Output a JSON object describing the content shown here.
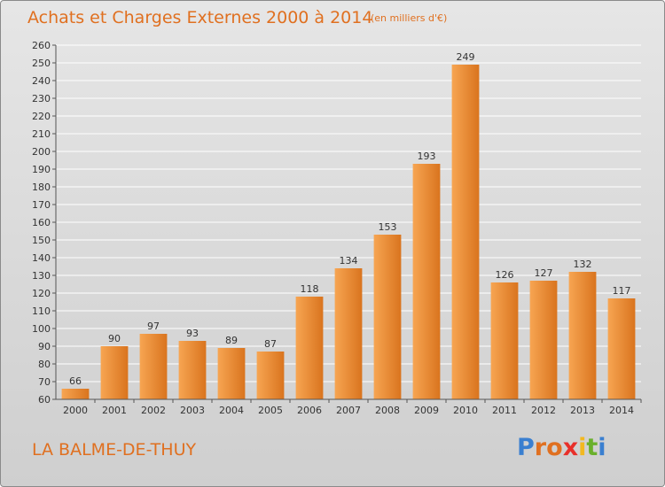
{
  "header": {
    "title": "Achats et Charges Externes 2000 à 2014",
    "subtitle": "(en milliers d'€)"
  },
  "footer": {
    "region": "LA BALME-DE-THUY",
    "logo_letters": [
      {
        "char": "P",
        "color": "#3a7fd0"
      },
      {
        "char": "r",
        "color": "#e07020"
      },
      {
        "char": "o",
        "color": "#e07020"
      },
      {
        "char": "x",
        "color": "#e8302a"
      },
      {
        "char": "i",
        "color": "#f2b820"
      },
      {
        "char": "t",
        "color": "#6ab02c"
      },
      {
        "char": "i",
        "color": "#3a7fd0"
      }
    ]
  },
  "colors": {
    "bar_light": "#f7a552",
    "bar_dark": "#d9741e",
    "grid": "#ffffff",
    "text": "#333333"
  },
  "chart_data": {
    "type": "bar",
    "categories": [
      "2000",
      "2001",
      "2002",
      "2003",
      "2004",
      "2005",
      "2006",
      "2007",
      "2008",
      "2009",
      "2010",
      "2011",
      "2012",
      "2013",
      "2014"
    ],
    "values": [
      66,
      90,
      97,
      93,
      89,
      87,
      118,
      134,
      153,
      193,
      249,
      126,
      127,
      132,
      117
    ],
    "data_labels": [
      "66",
      "90",
      "97",
      "93",
      "89",
      "87",
      "118",
      "134",
      "153",
      "193",
      "249",
      "126",
      "127",
      "132",
      "117"
    ],
    "ylim": [
      60,
      260
    ],
    "yticks": [
      "60",
      "70",
      "80",
      "90",
      "100",
      "110",
      "120",
      "130",
      "140",
      "150",
      "160",
      "170",
      "180",
      "190",
      "200",
      "210",
      "220",
      "230",
      "240",
      "250",
      "260"
    ],
    "grid": true,
    "legend": "none"
  }
}
